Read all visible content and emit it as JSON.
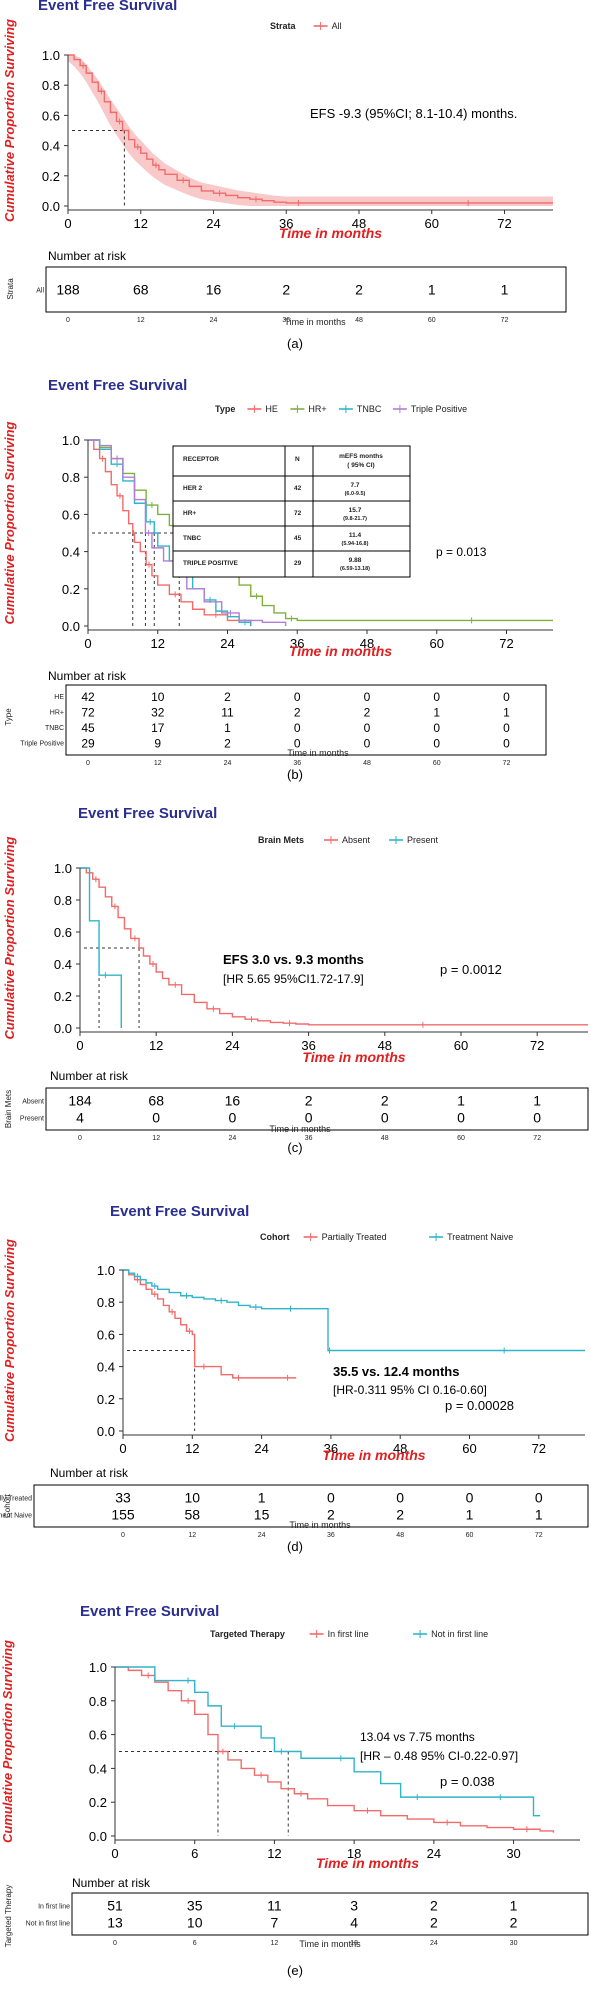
{
  "chart_data": [
    {
      "type": "line",
      "panel": "(a)",
      "title": "Event Free Survival",
      "ylabel": "Cumulative Proportion Surviving",
      "xlabel": "Time in months",
      "legend_title": "Strata",
      "series": [
        {
          "name": "All",
          "color": "#f26b6b",
          "x": [
            0,
            1,
            2,
            3,
            4,
            5,
            6,
            7,
            8,
            9,
            10,
            11,
            12,
            13,
            14,
            15,
            16,
            18,
            20,
            22,
            24,
            26,
            28,
            30,
            32,
            34,
            36,
            40,
            48,
            60,
            72,
            80
          ],
          "y": [
            1.0,
            0.97,
            0.93,
            0.88,
            0.82,
            0.76,
            0.69,
            0.62,
            0.56,
            0.5,
            0.44,
            0.39,
            0.35,
            0.31,
            0.27,
            0.24,
            0.21,
            0.17,
            0.13,
            0.1,
            0.085,
            0.07,
            0.055,
            0.045,
            0.035,
            0.025,
            0.02,
            0.02,
            0.02,
            0.02,
            0.02,
            0.02
          ]
        }
      ],
      "x_ticks": [
        0,
        12,
        24,
        36,
        48,
        60,
        72
      ],
      "y_ticks": [
        "0.0",
        "0.2",
        "0.4",
        "0.6",
        "0.8",
        "1.0"
      ],
      "xlim": [
        0,
        80
      ],
      "ylim": [
        0,
        1
      ],
      "annotations": [
        "EFS -9.3 (95%CI; 8.1-10.4) months."
      ],
      "median": [
        {
          "x": 9.3,
          "y": 0.5
        }
      ],
      "risk_table": {
        "heading": "Number at risk",
        "axis_label": "Strata",
        "xlabel": "Time in months",
        "rows": [
          {
            "label": "All",
            "color": "#f26b6b",
            "counts": [
              "188",
              "68",
              "16",
              "2",
              "2",
              "1",
              "1"
            ]
          }
        ]
      },
      "caption": "(a)"
    },
    {
      "type": "line",
      "panel": "(b)",
      "title": "Event Free Survival",
      "ylabel": "Cumulative Proportion Surviving",
      "xlabel": "Time in months",
      "legend_title": "Type",
      "series": [
        {
          "name": "HE",
          "color": "#f26b6b",
          "x": [
            0,
            1,
            2,
            3,
            4,
            5,
            6,
            7,
            7.7,
            8,
            9,
            10,
            11,
            12,
            14,
            16,
            18,
            20,
            24,
            28
          ],
          "y": [
            1.0,
            0.95,
            0.9,
            0.83,
            0.76,
            0.7,
            0.62,
            0.55,
            0.5,
            0.45,
            0.4,
            0.33,
            0.27,
            0.22,
            0.17,
            0.13,
            0.09,
            0.06,
            0.03,
            0.0
          ]
        },
        {
          "name": "HR+",
          "color": "#7fb03a",
          "x": [
            0,
            2,
            4,
            6,
            8,
            10,
            12,
            14,
            15.7,
            18,
            20,
            22,
            24,
            26,
            28,
            30,
            32,
            34,
            36,
            48,
            60,
            72,
            80
          ],
          "y": [
            1.0,
            0.96,
            0.9,
            0.82,
            0.73,
            0.65,
            0.6,
            0.54,
            0.5,
            0.44,
            0.38,
            0.33,
            0.28,
            0.22,
            0.16,
            0.11,
            0.07,
            0.04,
            0.03,
            0.03,
            0.03,
            0.03,
            0.03
          ]
        },
        {
          "name": "TNBC",
          "color": "#2fb5c9",
          "x": [
            0,
            2,
            4,
            6,
            8,
            10,
            11.4,
            12,
            14,
            16,
            18,
            20,
            22,
            24,
            26,
            28
          ],
          "y": [
            1.0,
            0.95,
            0.87,
            0.78,
            0.66,
            0.56,
            0.5,
            0.43,
            0.35,
            0.27,
            0.2,
            0.14,
            0.08,
            0.05,
            0.02,
            0.0
          ]
        },
        {
          "name": "Triple Positive",
          "color": "#b07ed8",
          "x": [
            0,
            2,
            4,
            6,
            8,
            9.88,
            11,
            13,
            15,
            17,
            20,
            23,
            26,
            30,
            34
          ],
          "y": [
            1.0,
            0.97,
            0.9,
            0.8,
            0.68,
            0.5,
            0.42,
            0.35,
            0.28,
            0.2,
            0.13,
            0.07,
            0.03,
            0.02,
            0.0
          ]
        }
      ],
      "x_ticks": [
        0,
        12,
        24,
        36,
        48,
        60,
        72
      ],
      "y_ticks": [
        "0.0",
        "0.2",
        "0.4",
        "0.6",
        "0.8",
        "1.0"
      ],
      "xlim": [
        0,
        80
      ],
      "ylim": [
        0,
        1
      ],
      "annotations": [
        "p = 0.013"
      ],
      "median": [
        {
          "x": 7.7,
          "y": 0.5
        },
        {
          "x": 9.88,
          "y": 0.5
        },
        {
          "x": 11.4,
          "y": 0.5
        },
        {
          "x": 15.7,
          "y": 0.5
        }
      ],
      "inset_table": {
        "headers": [
          "RECEPTOR",
          "N",
          "mEFS months",
          "( 95% CI)"
        ],
        "rows": [
          [
            "HER 2",
            "42",
            "7.7",
            "(6.0-9.5)"
          ],
          [
            "HR+",
            "72",
            "15.7",
            "(9.8-21.7)"
          ],
          [
            "TNBC",
            "45",
            "11.4",
            "(5.94-16.8)"
          ],
          [
            "TRIPLE POSITIVE",
            "29",
            "9.88",
            "(6.59-13.18)"
          ]
        ]
      },
      "risk_table": {
        "heading": "Number at risk",
        "axis_label": "Type",
        "xlabel": "Time in months",
        "rows": [
          {
            "label": "HE",
            "color": "#f26b6b",
            "counts": [
              "42",
              "10",
              "2",
              "0",
              "0",
              "0",
              "0"
            ]
          },
          {
            "label": "HR+",
            "color": "#7fb03a",
            "counts": [
              "72",
              "32",
              "11",
              "2",
              "2",
              "1",
              "1"
            ]
          },
          {
            "label": "TNBC",
            "color": "#2fb5c9",
            "counts": [
              "45",
              "17",
              "1",
              "0",
              "0",
              "0",
              "0"
            ]
          },
          {
            "label": "Triple Positive",
            "color": "#b07ed8",
            "counts": [
              "29",
              "9",
              "2",
              "0",
              "0",
              "0",
              "0"
            ]
          }
        ]
      },
      "caption": "(b)"
    },
    {
      "type": "line",
      "panel": "(c)",
      "title": "Event Free Survival",
      "ylabel": "Cumulative Proportion Surviving",
      "xlabel": "Time in months",
      "legend_title": "Brain Mets",
      "series": [
        {
          "name": "Absent",
          "color": "#f26b6b",
          "x": [
            0,
            1,
            2,
            3,
            4,
            5,
            6,
            7,
            8,
            9.3,
            10,
            11,
            12,
            13,
            14,
            16,
            18,
            20,
            22,
            24,
            26,
            28,
            30,
            32,
            34,
            36,
            48,
            60,
            72,
            80
          ],
          "y": [
            1.0,
            0.97,
            0.93,
            0.88,
            0.82,
            0.76,
            0.69,
            0.62,
            0.56,
            0.5,
            0.45,
            0.4,
            0.35,
            0.31,
            0.27,
            0.21,
            0.16,
            0.12,
            0.09,
            0.07,
            0.055,
            0.045,
            0.035,
            0.03,
            0.025,
            0.02,
            0.02,
            0.02,
            0.02,
            0.02
          ]
        },
        {
          "name": "Present",
          "color": "#2fb5c9",
          "x": [
            0,
            1.5,
            3,
            5,
            6.5
          ],
          "y": [
            1.0,
            0.67,
            0.33,
            0.33,
            0.0
          ]
        }
      ],
      "x_ticks": [
        0,
        12,
        24,
        36,
        48,
        60,
        72
      ],
      "y_ticks": [
        "0.0",
        "0.2",
        "0.4",
        "0.6",
        "0.8",
        "1.0"
      ],
      "xlim": [
        0,
        80
      ],
      "ylim": [
        0,
        1
      ],
      "annotations": [
        "EFS 3.0  vs. 9.3 months",
        "[HR 5.65 95%CI1.72-17.9]",
        "p = 0.0012"
      ],
      "median": [
        {
          "x": 3.0,
          "y": 0.5
        },
        {
          "x": 9.3,
          "y": 0.5
        }
      ],
      "risk_table": {
        "heading": "Number at risk",
        "axis_label": "Brain Mets",
        "xlabel": "Time in months",
        "rows": [
          {
            "label": "Absent",
            "color": "#f26b6b",
            "counts": [
              "184",
              "68",
              "16",
              "2",
              "2",
              "1",
              "1"
            ]
          },
          {
            "label": "Present",
            "color": "#2fb5c9",
            "counts": [
              "4",
              "0",
              "0",
              "0",
              "0",
              "0",
              "0"
            ]
          }
        ]
      },
      "caption": "(c)"
    },
    {
      "type": "line",
      "panel": "(d)",
      "title": "Event Free Survival",
      "ylabel": "Cumulative Proportion Surviving",
      "xlabel": "Time in months",
      "legend_title": "Cohort",
      "series": [
        {
          "name": "Partially Treated",
          "color": "#f26b6b",
          "x": [
            0,
            1,
            2,
            3,
            4,
            5,
            6,
            7,
            8,
            9,
            10,
            11,
            12,
            12.4,
            13,
            15,
            17,
            19,
            21,
            24,
            27,
            30
          ],
          "y": [
            1.0,
            0.97,
            0.94,
            0.91,
            0.88,
            0.85,
            0.82,
            0.78,
            0.74,
            0.7,
            0.66,
            0.62,
            0.6,
            0.4,
            0.4,
            0.4,
            0.35,
            0.33,
            0.33,
            0.33,
            0.33,
            0.33
          ]
        },
        {
          "name": "Treatment Naive",
          "color": "#2fb5c9",
          "x": [
            0,
            1,
            2,
            3,
            4,
            5,
            6,
            8,
            10,
            12,
            14,
            16,
            18,
            20,
            22,
            24,
            26,
            28,
            30,
            32,
            35.5,
            36,
            48,
            60,
            72,
            80
          ],
          "y": [
            1.0,
            0.98,
            0.96,
            0.94,
            0.92,
            0.9,
            0.88,
            0.86,
            0.84,
            0.83,
            0.82,
            0.81,
            0.8,
            0.78,
            0.77,
            0.76,
            0.76,
            0.76,
            0.76,
            0.76,
            0.5,
            0.5,
            0.5,
            0.5,
            0.5,
            0.5
          ]
        }
      ],
      "x_ticks": [
        0,
        12,
        24,
        36,
        48,
        60,
        72
      ],
      "y_ticks": [
        "0.0",
        "0.2",
        "0.4",
        "0.6",
        "0.8",
        "1.0"
      ],
      "xlim": [
        0,
        80
      ],
      "ylim": [
        0,
        1
      ],
      "annotations": [
        "35.5 vs. 12.4 months",
        "[HR-0.311 95% CI 0.16-0.60]",
        "p = 0.00028"
      ],
      "median": [
        {
          "x": 12.4,
          "y": 0.5
        }
      ],
      "risk_table": {
        "heading": "Number at risk",
        "axis_label": "Cohort",
        "xlabel": "Time in months",
        "rows": [
          {
            "label": "Partially Treated",
            "color": "#f26b6b",
            "counts": [
              "33",
              "10",
              "1",
              "0",
              "0",
              "0",
              "0"
            ]
          },
          {
            "label": "Treatment Naive",
            "color": "#2fb5c9",
            "counts": [
              "155",
              "58",
              "15",
              "2",
              "2",
              "1",
              "1"
            ]
          }
        ]
      },
      "caption": "(d)"
    },
    {
      "type": "line",
      "panel": "(e)",
      "title": "Event Free Survival",
      "ylabel": "Cumulative Proportion Surviving",
      "xlabel": "Time in months",
      "legend_title": "Targeted Therapy",
      "series": [
        {
          "name": "In first line",
          "color": "#f26b6b",
          "x": [
            0,
            1,
            2,
            3,
            4,
            5,
            6,
            7,
            7.75,
            8.5,
            9.5,
            10.5,
            11.5,
            12.5,
            13.5,
            14.5,
            16,
            18,
            20,
            22,
            24,
            26,
            28,
            30,
            32,
            33
          ],
          "y": [
            1.0,
            0.98,
            0.95,
            0.91,
            0.86,
            0.8,
            0.72,
            0.6,
            0.5,
            0.45,
            0.4,
            0.36,
            0.32,
            0.28,
            0.25,
            0.22,
            0.18,
            0.15,
            0.12,
            0.1,
            0.08,
            0.06,
            0.05,
            0.04,
            0.03,
            0.02
          ]
        },
        {
          "name": "Not in first line",
          "color": "#2fb5c9",
          "x": [
            0,
            3,
            5,
            6,
            7,
            8,
            10,
            11,
            12,
            13.04,
            14,
            16,
            18,
            20,
            21.5,
            24,
            26,
            28,
            30,
            31.5,
            32
          ],
          "y": [
            1.0,
            0.92,
            0.92,
            0.85,
            0.77,
            0.65,
            0.65,
            0.58,
            0.5,
            0.5,
            0.46,
            0.46,
            0.38,
            0.31,
            0.23,
            0.23,
            0.23,
            0.23,
            0.23,
            0.12,
            0.12
          ]
        }
      ],
      "x_ticks": [
        0,
        6,
        12,
        18,
        24,
        30
      ],
      "y_ticks": [
        "0.0",
        "0.2",
        "0.4",
        "0.6",
        "0.8",
        "1.0"
      ],
      "xlim": [
        0,
        35
      ],
      "ylim": [
        0,
        1
      ],
      "annotations": [
        "13.04 vs 7.75 months",
        "[HR – 0.48 95% CI-0.22-0.97]",
        "p = 0.038"
      ],
      "median": [
        {
          "x": 7.75,
          "y": 0.5
        },
        {
          "x": 13.04,
          "y": 0.5
        }
      ],
      "risk_table": {
        "heading": "Number at risk",
        "axis_label": "Targeted Therapy",
        "xlabel": "Time in months",
        "rows": [
          {
            "label": "In first line",
            "color": "#f26b6b",
            "counts": [
              "51",
              "35",
              "11",
              "3",
              "2",
              "1"
            ]
          },
          {
            "label": "Not in first line",
            "color": "#2fb5c9",
            "counts": [
              "13",
              "10",
              "7",
              "4",
              "2",
              "2"
            ]
          }
        ]
      },
      "caption": "(e)"
    }
  ]
}
